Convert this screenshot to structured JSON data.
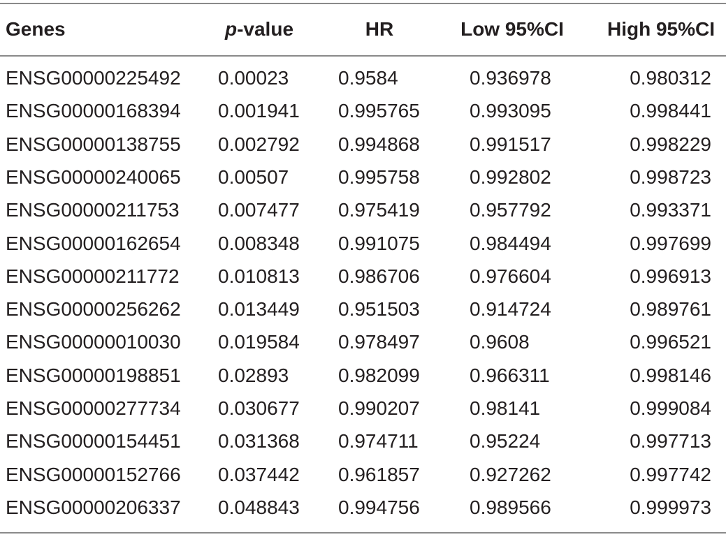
{
  "table": {
    "header": [
      "Genes",
      "p-value",
      "HR",
      "Low 95%CI",
      "High 95%CI"
    ],
    "rows": [
      [
        "ENSG00000225492",
        "0.00023",
        "0.9584",
        "0.936978",
        "0.980312"
      ],
      [
        "ENSG00000168394",
        "0.001941",
        "0.995765",
        "0.993095",
        "0.998441"
      ],
      [
        "ENSG00000138755",
        "0.002792",
        "0.994868",
        "0.991517",
        "0.998229"
      ],
      [
        "ENSG00000240065",
        "0.00507",
        "0.995758",
        "0.992802",
        "0.998723"
      ],
      [
        "ENSG00000211753",
        "0.007477",
        "0.975419",
        "0.957792",
        "0.993371"
      ],
      [
        "ENSG00000162654",
        "0.008348",
        "0.991075",
        "0.984494",
        "0.997699"
      ],
      [
        "ENSG00000211772",
        "0.010813",
        "0.986706",
        "0.976604",
        "0.996913"
      ],
      [
        "ENSG00000256262",
        "0.013449",
        "0.951503",
        "0.914724",
        "0.989761"
      ],
      [
        "ENSG00000010030",
        "0.019584",
        "0.978497",
        "0.9608",
        "0.996521"
      ],
      [
        "ENSG00000198851",
        "0.02893",
        "0.982099",
        "0.966311",
        "0.998146"
      ],
      [
        "ENSG00000277734",
        "0.030677",
        "0.990207",
        "0.98141",
        "0.999084"
      ],
      [
        "ENSG00000154451",
        "0.031368",
        "0.974711",
        "0.95224",
        "0.997713"
      ],
      [
        "ENSG00000152766",
        "0.037442",
        "0.961857",
        "0.927262",
        "0.997742"
      ],
      [
        "ENSG00000206337",
        "0.048843",
        "0.994756",
        "0.989566",
        "0.999973"
      ]
    ]
  }
}
